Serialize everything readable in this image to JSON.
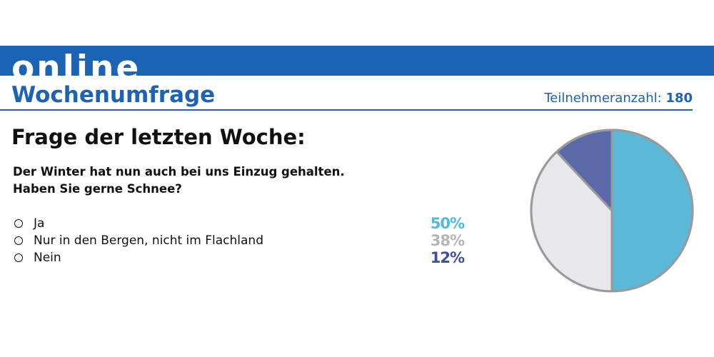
{
  "header": {
    "brand": "online",
    "subtitle": "Wochenumfrage",
    "participants_label": "Teilnehmeranzahl:",
    "participants_value": "180"
  },
  "poll": {
    "heading": "Frage der letzten Woche:",
    "question_lines": [
      "Der Winter hat nun auch bei uns Einzug gehalten.",
      "Haben Sie gerne Schnee?"
    ],
    "answers": [
      {
        "label": "Ja",
        "percent_text": "50%",
        "color": "#4dbbe0"
      },
      {
        "label": "Nur in den Bergen, nicht im Flachland",
        "percent_text": "38%",
        "color": "#b5b5b5"
      },
      {
        "label": "Nein",
        "percent_text": "12%",
        "color": "#3e4f9f"
      }
    ]
  },
  "colors": {
    "brand_blue": "#1d63b3",
    "slice_ja": "#5bb8d9",
    "slice_berge": "#e8e8ec",
    "slice_nein": "#5a6aa8",
    "pie_outline": "#9a9a9a"
  },
  "chart_data": {
    "type": "pie",
    "categories": [
      "Ja",
      "Nur in den Bergen, nicht im Flachland",
      "Nein"
    ],
    "values": [
      50,
      38,
      12
    ],
    "unit": "%",
    "colors": [
      "#5bb8d9",
      "#e8e8ec",
      "#5a6aa8"
    ],
    "start": "top",
    "direction": "clockwise",
    "legend": "left list with percentages"
  }
}
